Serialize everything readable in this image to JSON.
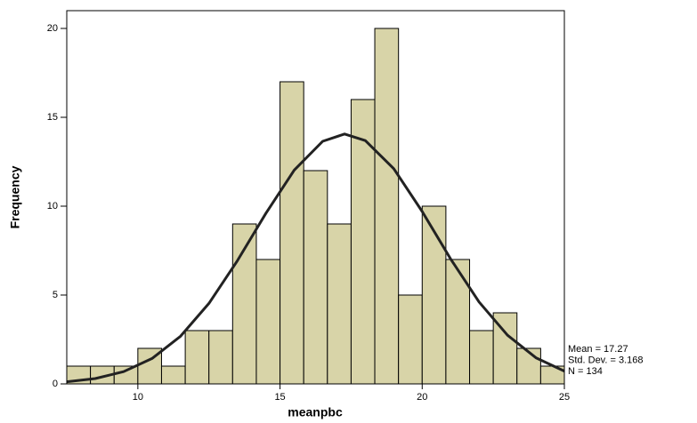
{
  "chart_data": {
    "type": "histogram",
    "x_label": "meanpbc",
    "y_label": "Frequency",
    "bins": [
      7.5,
      8.333,
      9.167,
      10,
      10.833,
      11.667,
      12.5,
      13.333,
      14.167,
      15,
      15.833,
      16.667,
      17.5,
      18.333,
      19.167,
      20,
      20.833,
      21.667,
      22.5,
      23.333,
      24.167,
      25
    ],
    "values": [
      1,
      1,
      1,
      2,
      1,
      3,
      3,
      9,
      7,
      17,
      12,
      9,
      16,
      20,
      5,
      10,
      7,
      3,
      4,
      2,
      1
    ],
    "color": "#d8d4a8",
    "curve": {
      "color": "#222222",
      "x": [
        7.5,
        8.5,
        9.5,
        10.5,
        11.5,
        12.5,
        13.5,
        14.5,
        15.5,
        16.5,
        17.27,
        18,
        19,
        20,
        21,
        22,
        23,
        24,
        25
      ],
      "values": [
        0.12,
        0.3,
        0.69,
        1.43,
        2.68,
        4.53,
        6.93,
        9.59,
        12.03,
        13.65,
        14.06,
        13.69,
        12.11,
        9.7,
        7.03,
        4.61,
        2.74,
        1.47,
        0.72
      ]
    },
    "annotations": [
      "Mean = 17.27",
      "Std. Dev. = 3.168",
      "N = 134"
    ],
    "xlim": [
      7.5,
      25
    ],
    "xticks": [
      10,
      15,
      20,
      25
    ],
    "ylim": [
      0,
      21
    ],
    "yticks": [
      0,
      5,
      10,
      15,
      20
    ]
  }
}
